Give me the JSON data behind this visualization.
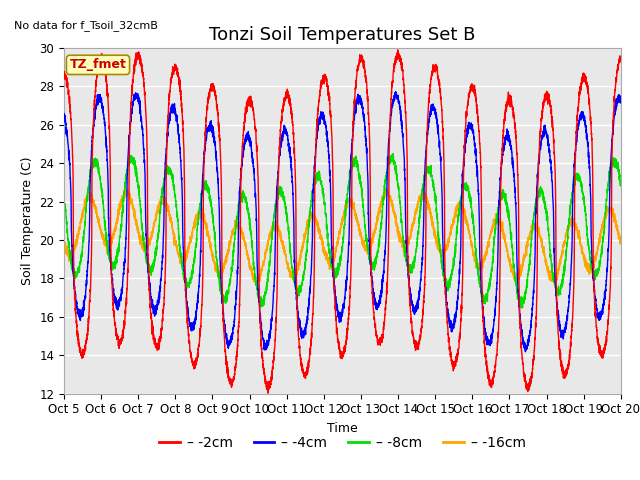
{
  "title": "Tonzi Soil Temperatures Set B",
  "xlabel": "Time",
  "ylabel": "Soil Temperature (C)",
  "top_left_text": "No data for f_Tsoil_32cmB",
  "legend_label_text": "TZ_fmet",
  "ylim": [
    12,
    30
  ],
  "yticks": [
    12,
    14,
    16,
    18,
    20,
    22,
    24,
    26,
    28,
    30
  ],
  "x_tick_labels": [
    "Oct 5",
    "Oct 6",
    "Oct 7",
    "Oct 8",
    "Oct 9",
    "Oct 10",
    "Oct 11",
    "Oct 12",
    "Oct 13",
    "Oct 14",
    "Oct 15",
    "Oct 16",
    "Oct 17",
    "Oct 18",
    "Oct 19",
    "Oct 20"
  ],
  "series_colors": {
    "-2cm": "#ff0000",
    "-4cm": "#0000ff",
    "-8cm": "#00dd00",
    "-16cm": "#ffa500"
  },
  "plot_bg_color": "#e8e8e8",
  "title_fontsize": 13,
  "axis_label_fontsize": 9,
  "tick_fontsize": 8.5,
  "legend_fontsize": 10,
  "line_width": 1.0
}
